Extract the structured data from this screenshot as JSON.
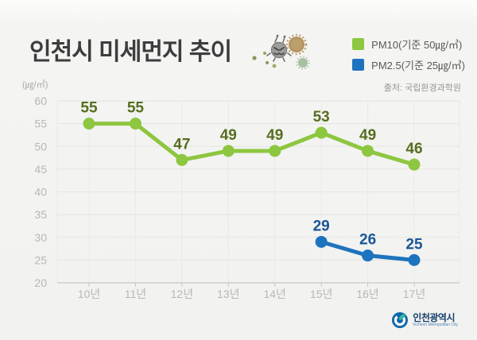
{
  "header": {
    "title": "인천시 미세먼지 추이",
    "source": "출처: 국립환경과학원"
  },
  "legend": [
    {
      "label": "PM10(기준 50㎍/㎥)",
      "color": "#8dc63f"
    },
    {
      "label": "PM2.5(기준 25㎍/㎥)",
      "color": "#1e73be"
    }
  ],
  "footer": {
    "logo_text": "인천광역시",
    "logo_subtext": "Incheon Metropolitan City"
  },
  "chart_data": {
    "type": "line",
    "title": "인천시 미세먼지 추이",
    "categories": [
      "10년",
      "11년",
      "12년",
      "13년",
      "14년",
      "15년",
      "16년",
      "17년"
    ],
    "series": [
      {
        "name": "PM10(기준 50㎍/㎥)",
        "color": "#8dc63f",
        "label_color": "#566e1f",
        "values": [
          55,
          55,
          47,
          49,
          49,
          53,
          49,
          46
        ]
      },
      {
        "name": "PM2.5(기준 25㎍/㎥)",
        "color": "#1e73be",
        "label_color": "#1a5796",
        "values": [
          null,
          null,
          null,
          null,
          null,
          29,
          26,
          25
        ]
      }
    ],
    "ylabel": "(㎍/㎥)",
    "ylim": [
      20,
      60
    ],
    "yticks": [
      20,
      25,
      30,
      35,
      40,
      45,
      50,
      55,
      60
    ],
    "grid": true,
    "legend_position": "top-right"
  }
}
